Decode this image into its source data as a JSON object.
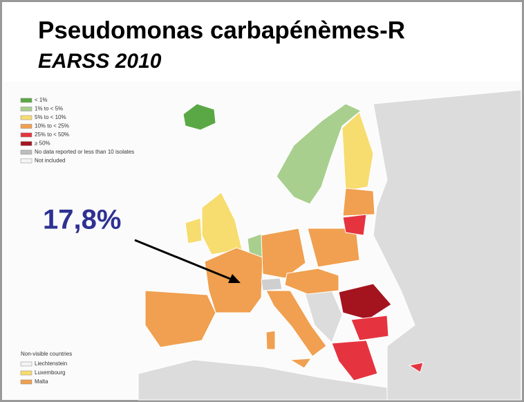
{
  "title": "Pseudomonas carbapénèmes-R",
  "subtitle": "EARSS 2010",
  "legend": [
    {
      "label": "< 1%",
      "color": "#5aa845"
    },
    {
      "label": "1% to < 5%",
      "color": "#a8cf8e"
    },
    {
      "label": "5% to < 10%",
      "color": "#f7dc6f"
    },
    {
      "label": "10% to < 25%",
      "color": "#f0a050"
    },
    {
      "label": "25% to < 50%",
      "color": "#e5343f"
    },
    {
      "label": "≥ 50%",
      "color": "#a3141f"
    },
    {
      "label": "No data reported or less than 10 isolates",
      "color": "#bdbdbd"
    },
    {
      "label": "Not included",
      "color": "#f4f4f4"
    }
  ],
  "annotation": "17,8%",
  "non_visible": {
    "title": "Non-visible countries",
    "items": [
      {
        "label": "Liechtenstein",
        "color": "#f4f4f4"
      },
      {
        "label": "Luxembourg",
        "color": "#f7dc6f"
      },
      {
        "label": "Malta",
        "color": "#f0a050"
      }
    ]
  }
}
